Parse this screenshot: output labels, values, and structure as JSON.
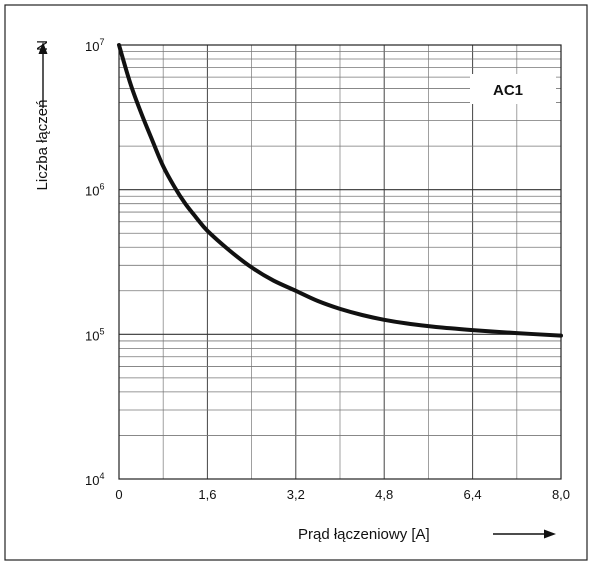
{
  "chart_data": {
    "type": "line",
    "xlabel": "Prąd łączeniowy [A]",
    "ylabel": "Liczba łączeń",
    "ylabel_symbol": "N",
    "annotation": "AC1",
    "x_ticks": [
      "0",
      "1,6",
      "3,2",
      "4,8",
      "6,4",
      "8,0"
    ],
    "x_tick_values": [
      0,
      1.6,
      3.2,
      4.8,
      6.4,
      8.0
    ],
    "y_ticks": [
      {
        "base": "10",
        "exp": "7",
        "value": 10000000
      },
      {
        "base": "10",
        "exp": "6",
        "value": 1000000
      },
      {
        "base": "10",
        "exp": "5",
        "value": 100000
      },
      {
        "base": "10",
        "exp": "4",
        "value": 10000
      }
    ],
    "xlim": [
      0,
      8.0
    ],
    "ylim": [
      10000,
      10000000
    ],
    "y_scale": "log",
    "grid": true,
    "series": [
      {
        "x": [
          0,
          0.2,
          0.4,
          0.6,
          0.8,
          1.0,
          1.2,
          1.4,
          1.6,
          2.0,
          2.4,
          2.8,
          3.2,
          3.6,
          4.0,
          4.4,
          4.8,
          5.2,
          5.6,
          6.0,
          6.4,
          7.2,
          8.0
        ],
        "y": [
          10000000,
          5500000,
          3400000,
          2200000,
          1450000,
          1050000,
          800000,
          640000,
          520000,
          380000,
          290000,
          235000,
          200000,
          170000,
          150000,
          136000,
          126000,
          119000,
          114000,
          110000,
          107000,
          102000,
          98000
        ]
      }
    ]
  }
}
